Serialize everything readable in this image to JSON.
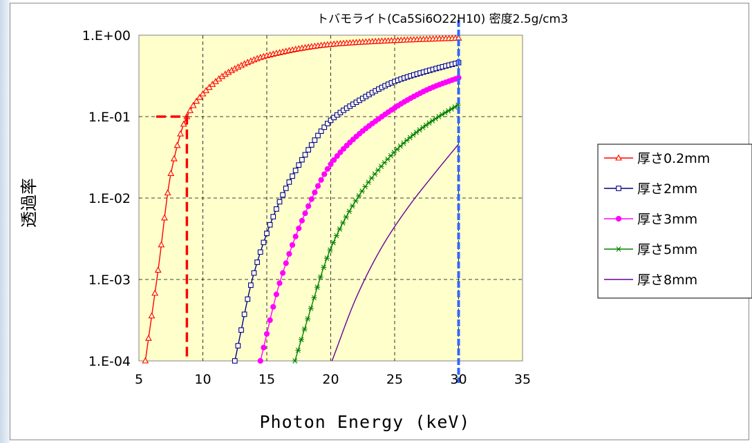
{
  "chart_data": {
    "type": "line",
    "title": "トバモライト(Ca5Si6O22H10) 密度2.5g/cm3",
    "xlabel": "Photon Energy (keV)",
    "ylabel": "透過率",
    "xlim": [
      5,
      35
    ],
    "ylim": [
      0.0001,
      1
    ],
    "yscale": "log",
    "x_ticks": [
      "5",
      "10",
      "15",
      "20",
      "25",
      "30",
      "35"
    ],
    "y_ticks": [
      "1.E-04",
      "1.E-03",
      "1.E-02",
      "1.E-01",
      "1.E+00"
    ],
    "grid": "dashed",
    "legend_position": "right",
    "plot_background": "#ffffcc",
    "series": [
      {
        "name": "厚さ0.2mm",
        "thickness_mm": 0.2,
        "color": "#ff0000",
        "marker": "triangle-open",
        "x": [
          5.5,
          6.5,
          7.5,
          8.75,
          10,
          12,
          15,
          20,
          25,
          30
        ],
        "y": [
          0.0001,
          0.0013,
          0.02,
          0.1,
          0.19,
          0.35,
          0.56,
          0.77,
          0.86,
          0.92
        ]
      },
      {
        "name": "厚さ2mm",
        "thickness_mm": 2,
        "color": "#000080",
        "marker": "square-open",
        "x": [
          12.5,
          14,
          16,
          18,
          20,
          22,
          25,
          28,
          30
        ],
        "y": [
          0.0001,
          0.0012,
          0.009,
          0.034,
          0.09,
          0.15,
          0.27,
          0.38,
          0.46
        ]
      },
      {
        "name": "厚さ3mm",
        "thickness_mm": 3,
        "color": "#ff00ff",
        "marker": "circle-filled",
        "x": [
          14.5,
          16,
          18,
          20,
          22,
          24,
          26,
          28,
          30
        ],
        "y": [
          0.0001,
          0.0009,
          0.0065,
          0.026,
          0.057,
          0.1,
          0.16,
          0.23,
          0.3
        ]
      },
      {
        "name": "厚さ5mm",
        "thickness_mm": 5,
        "color": "#008000",
        "marker": "star",
        "x": [
          17.2,
          18,
          20,
          22,
          24,
          26,
          28,
          30
        ],
        "y": [
          0.0001,
          0.00026,
          0.0024,
          0.0095,
          0.025,
          0.052,
          0.09,
          0.14
        ]
      },
      {
        "name": "厚さ8mm",
        "thickness_mm": 8,
        "color": "#660099",
        "marker": "none",
        "x": [
          20.1,
          22,
          24,
          26,
          28,
          30
        ],
        "y": [
          0.0001,
          0.0006,
          0.0025,
          0.0075,
          0.019,
          0.046
        ]
      }
    ],
    "annotations": [
      {
        "type": "marker-line",
        "color": "#ff0000",
        "style": "dashed",
        "x": 8.75,
        "y": 0.1
      },
      {
        "type": "vertical-line",
        "color": "#3366ff",
        "style": "dashed",
        "x": 30
      }
    ]
  }
}
